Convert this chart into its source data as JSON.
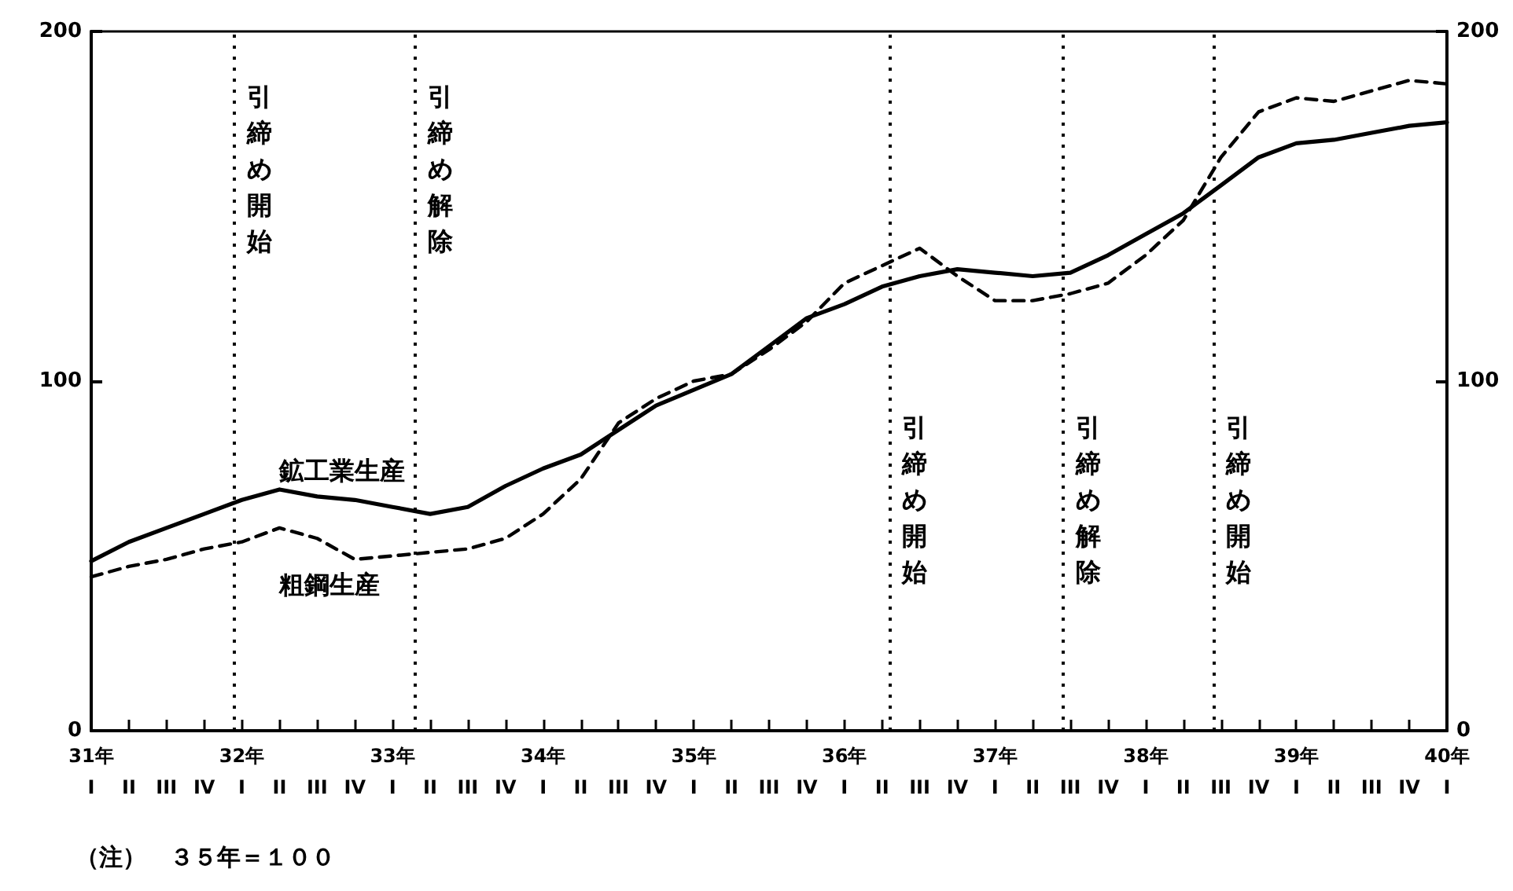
{
  "chart_data": {
    "type": "line",
    "marker": "none",
    "grid": false,
    "legend": false,
    "x": [
      31,
      31.25,
      31.5,
      31.75,
      32,
      32.25,
      32.5,
      32.75,
      33,
      33.25,
      33.5,
      33.75,
      34,
      34.25,
      34.5,
      34.75,
      35,
      35.25,
      35.5,
      35.75,
      36,
      36.25,
      36.5,
      36.75,
      37,
      37.25,
      37.5,
      37.75,
      38,
      38.25,
      38.5,
      38.75,
      39,
      39.25,
      39.5,
      39.75,
      40
    ],
    "xlim": [
      31,
      40
    ],
    "xticks": [
      {
        "value": 31,
        "label": "31年\nI"
      },
      {
        "value": 31.25,
        "label": "II"
      },
      {
        "value": 31.5,
        "label": "III"
      },
      {
        "value": 31.75,
        "label": "IV"
      },
      {
        "value": 32,
        "label": "32年\nI"
      },
      {
        "value": 32.25,
        "label": "II"
      },
      {
        "value": 32.5,
        "label": "III"
      },
      {
        "value": 32.75,
        "label": "IV"
      },
      {
        "value": 33,
        "label": "33年\nI"
      },
      {
        "value": 33.25,
        "label": "II"
      },
      {
        "value": 33.5,
        "label": "III"
      },
      {
        "value": 33.75,
        "label": "IV"
      },
      {
        "value": 34,
        "label": "34年\nI"
      },
      {
        "value": 34.25,
        "label": "II"
      },
      {
        "value": 34.5,
        "label": "III"
      },
      {
        "value": 34.75,
        "label": "IV"
      },
      {
        "value": 35,
        "label": "35年\nI"
      },
      {
        "value": 35.25,
        "label": "II"
      },
      {
        "value": 35.5,
        "label": "III"
      },
      {
        "value": 35.75,
        "label": "IV"
      },
      {
        "value": 36,
        "label": "36年\nI"
      },
      {
        "value": 36.25,
        "label": "II"
      },
      {
        "value": 36.5,
        "label": "III"
      },
      {
        "value": 36.75,
        "label": "IV"
      },
      {
        "value": 37,
        "label": "37年\nI"
      },
      {
        "value": 37.25,
        "label": "II"
      },
      {
        "value": 37.5,
        "label": "III"
      },
      {
        "value": 37.75,
        "label": "IV"
      },
      {
        "value": 38,
        "label": "38年\nI"
      },
      {
        "value": 38.25,
        "label": "II"
      },
      {
        "value": 38.5,
        "label": "III"
      },
      {
        "value": 38.75,
        "label": "IV"
      },
      {
        "value": 39,
        "label": "39年\nI"
      },
      {
        "value": 39.25,
        "label": "II"
      },
      {
        "value": 39.5,
        "label": "III"
      },
      {
        "value": 39.75,
        "label": "IV"
      },
      {
        "value": 40,
        "label": "40年\nI"
      }
    ],
    "ylim": [
      0,
      200
    ],
    "yticks": [
      0,
      100,
      200
    ],
    "y2lim": [
      0,
      200
    ],
    "y2ticks": [
      0,
      100,
      200
    ],
    "series": [
      {
        "name": "鉱工業生産",
        "color": "#000000",
        "line_style": "solid",
        "values": [
          48.5,
          54,
          58,
          62,
          66,
          69,
          67,
          66,
          64,
          62,
          64,
          70,
          75,
          79,
          86,
          93,
          97.5,
          102,
          110,
          118,
          122,
          127,
          130,
          132,
          131,
          130,
          131,
          136,
          142,
          148,
          156,
          164,
          168,
          169,
          171,
          173,
          174
        ]
      },
      {
        "name": "粗鋼生産",
        "color": "#000000",
        "line_style": "dashed",
        "values": [
          44,
          47,
          49,
          52,
          54,
          58,
          55,
          49,
          50,
          51,
          52,
          55,
          62,
          72,
          88,
          95,
          100,
          102,
          109,
          117,
          128,
          133,
          138,
          130,
          123,
          123,
          125,
          128,
          136,
          146,
          164,
          177,
          181,
          180,
          183,
          186,
          185
        ]
      }
    ],
    "ref_lines": [
      {
        "axis": "x",
        "value": 31.95,
        "label": "引締め開始",
        "color": "#000000",
        "line_style": "dotted"
      },
      {
        "axis": "x",
        "value": 33.15,
        "label": "引締め解除",
        "color": "#000000",
        "line_style": "dotted"
      },
      {
        "axis": "x",
        "value": 36.3,
        "label": "引締め開始",
        "color": "#000000",
        "line_style": "dotted"
      },
      {
        "axis": "x",
        "value": 37.45,
        "label": "引締め解除",
        "color": "#000000",
        "line_style": "dotted"
      },
      {
        "axis": "x",
        "value": 38.45,
        "label": "引締め開始",
        "color": "#000000",
        "line_style": "dotted"
      }
    ],
    "annotations": [
      "（注）　３５年＝１００"
    ]
  }
}
